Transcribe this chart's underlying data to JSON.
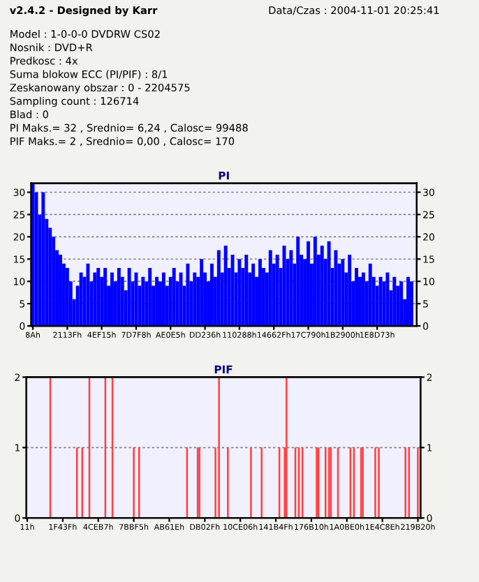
{
  "chart_data": [
    {
      "type": "bar",
      "title": "PI",
      "annotations": [
        "v2.4.2 - Designed by Karr",
        "Data/Czas : 2004-11-01 20:25:41",
        "Model : 1-0-0-0 DVDRW CS02",
        "Nosnik : DVD+R",
        "Predkosc : 4x",
        "Suma blokow ECC (PI/PIF) : 8/1",
        "Zeskanowany obszar : 0 - 2204575",
        "Sampling count : 126714",
        "Blad : 0",
        "PI Maks.= 32 , Srednio= 6,24 , Calosc= 99488",
        "PIF Maks.= 2 , Srednio= 0,00 , Calosc= 170"
      ],
      "categories": [
        "8Ah",
        null,
        null,
        null,
        null,
        null,
        null,
        null,
        null,
        null,
        "2113Fh",
        null,
        null,
        null,
        null,
        null,
        null,
        null,
        null,
        null,
        "4EF15h",
        null,
        null,
        null,
        null,
        null,
        null,
        null,
        null,
        null,
        "7D7F8h",
        null,
        null,
        null,
        null,
        null,
        null,
        null,
        null,
        null,
        "AE0E5h",
        null,
        null,
        null,
        null,
        null,
        null,
        null,
        null,
        null,
        "DD236h",
        null,
        null,
        null,
        null,
        null,
        null,
        null,
        null,
        null,
        "110288h",
        null,
        null,
        null,
        null,
        null,
        null,
        null,
        null,
        null,
        "14662Fh",
        null,
        null,
        null,
        null,
        null,
        null,
        null,
        null,
        null,
        "17C790h",
        null,
        null,
        null,
        null,
        null,
        null,
        null,
        null,
        null,
        "1B2900h",
        null,
        null,
        null,
        null,
        null,
        null,
        null,
        null,
        null,
        "1E8D73h",
        null,
        null,
        null,
        null,
        null,
        null,
        null,
        null,
        null,
        null
      ],
      "series": [
        {
          "color": "#0000ff",
          "values": [
            32,
            30,
            25,
            30,
            24,
            22,
            20,
            17,
            16,
            14,
            13,
            10,
            6,
            9,
            12,
            11,
            14,
            10,
            12,
            13,
            11,
            13,
            9,
            12,
            10,
            13,
            11,
            8,
            13,
            10,
            12,
            9,
            11,
            10,
            13,
            9,
            11,
            10,
            12,
            9,
            11,
            13,
            10,
            12,
            9,
            14,
            10,
            12,
            11,
            15,
            12,
            10,
            14,
            11,
            17,
            12,
            18,
            13,
            16,
            12,
            15,
            13,
            16,
            12,
            14,
            11,
            15,
            13,
            12,
            17,
            14,
            16,
            13,
            18,
            15,
            17,
            14,
            20,
            16,
            15,
            19,
            14,
            20,
            16,
            18,
            15,
            19,
            13,
            17,
            14,
            15,
            12,
            16,
            10,
            13,
            11,
            12,
            10,
            14,
            11,
            9,
            11,
            10,
            12,
            8,
            11,
            9,
            10,
            6,
            11,
            10
          ]
        }
      ],
      "ylim": [
        0,
        32
      ],
      "yticks": [
        0,
        5,
        10,
        15,
        20,
        25,
        30
      ],
      "y2lim": [
        0,
        32
      ],
      "y2ticks": [
        0,
        5,
        10,
        15,
        20,
        25,
        30
      ],
      "grid": "y"
    },
    {
      "type": "bar",
      "title": "PIF",
      "categories": [
        "11h",
        null,
        null,
        null,
        null,
        null,
        null,
        null,
        null,
        null,
        null,
        null,
        null,
        null,
        null,
        null,
        null,
        null,
        null,
        null,
        "1F43Fh",
        null,
        null,
        null,
        null,
        null,
        null,
        null,
        null,
        null,
        null,
        null,
        null,
        null,
        null,
        null,
        null,
        null,
        null,
        null,
        "4CEB7h",
        null,
        null,
        null,
        null,
        null,
        null,
        null,
        null,
        null,
        null,
        null,
        null,
        null,
        null,
        null,
        null,
        null,
        null,
        null,
        "7BBF5h",
        null,
        null,
        null,
        null,
        null,
        null,
        null,
        null,
        null,
        null,
        null,
        null,
        null,
        null,
        null,
        null,
        null,
        null,
        null,
        "AB61Eh",
        null,
        null,
        null,
        null,
        null,
        null,
        null,
        null,
        null,
        null,
        null,
        null,
        null,
        null,
        null,
        null,
        null,
        null,
        null,
        "DB02Fh",
        null,
        null,
        null,
        null,
        null,
        null,
        null,
        null,
        null,
        null,
        null,
        null,
        null,
        null,
        null,
        null,
        null,
        null,
        null,
        "10CE06h",
        null,
        null,
        null,
        null,
        null,
        null,
        null,
        null,
        null,
        null,
        null,
        null,
        null,
        null,
        null,
        null,
        null,
        null,
        null,
        "141B4Fh",
        null,
        null,
        null,
        null,
        null,
        null,
        null,
        null,
        null,
        null,
        null,
        null,
        null,
        null,
        null,
        null,
        null,
        null,
        null,
        "176B10h",
        null,
        null,
        null,
        null,
        null,
        null,
        null,
        null,
        null,
        null,
        null,
        null,
        null,
        null,
        null,
        null,
        null,
        null,
        null,
        "1A0BE0h",
        null,
        null,
        null,
        null,
        null,
        null,
        null,
        null,
        null,
        null,
        null,
        null,
        null,
        null,
        null,
        null,
        null,
        null,
        null,
        "1E4C8Eh",
        null,
        null,
        null,
        null,
        null,
        null,
        null,
        null,
        null,
        null,
        null,
        null,
        null,
        null,
        null,
        null,
        null,
        null,
        null,
        "219B20h"
      ],
      "series": [
        {
          "color": "#ff4040",
          "values": [
            0,
            0,
            0,
            0,
            0,
            0,
            0,
            0,
            0,
            0,
            0,
            0,
            0,
            2,
            0,
            0,
            0,
            0,
            0,
            0,
            0,
            0,
            0,
            0,
            0,
            0,
            0,
            0,
            1,
            0,
            0,
            1,
            0,
            0,
            0,
            2,
            0,
            0,
            0,
            0,
            0,
            0,
            0,
            0,
            2,
            0,
            0,
            0,
            2,
            0,
            0,
            0,
            0,
            0,
            0,
            0,
            0,
            0,
            0,
            0,
            1,
            0,
            0,
            1,
            0,
            0,
            0,
            0,
            0,
            0,
            0,
            0,
            0,
            0,
            0,
            0,
            0,
            0,
            0,
            0,
            0,
            0,
            0,
            0,
            0,
            0,
            0,
            0,
            0,
            0,
            1,
            0,
            0,
            0,
            0,
            0,
            1,
            1,
            0,
            0,
            0,
            0,
            0,
            0,
            0,
            0,
            1,
            0,
            2,
            0,
            0,
            0,
            0,
            1,
            0,
            0,
            0,
            0,
            0,
            0,
            0,
            0,
            0,
            0,
            0,
            0,
            1,
            0,
            0,
            0,
            0,
            0,
            1,
            0,
            0,
            0,
            0,
            0,
            0,
            0,
            0,
            0,
            1,
            0,
            0,
            1,
            2,
            0,
            0,
            0,
            0,
            1,
            0,
            1,
            0,
            1,
            0,
            0,
            0,
            0,
            0,
            0,
            0,
            1,
            1,
            0,
            0,
            0,
            1,
            0,
            1,
            1,
            0,
            0,
            0,
            1,
            0,
            0,
            0,
            0,
            0,
            0,
            1,
            0,
            1,
            0,
            0,
            0,
            1,
            1,
            0,
            0,
            0,
            0,
            0,
            0,
            1,
            0,
            1,
            0,
            0,
            0,
            0,
            0,
            0,
            0,
            0,
            0,
            0,
            0,
            0,
            0,
            0,
            1,
            0,
            1,
            0,
            0,
            0,
            0,
            1
          ]
        }
      ],
      "ylim": [
        0,
        2
      ],
      "yticks": [
        0,
        1,
        2
      ],
      "y2lim": [
        0,
        2
      ],
      "y2ticks": [
        0,
        1,
        2
      ],
      "grid": "y"
    }
  ]
}
